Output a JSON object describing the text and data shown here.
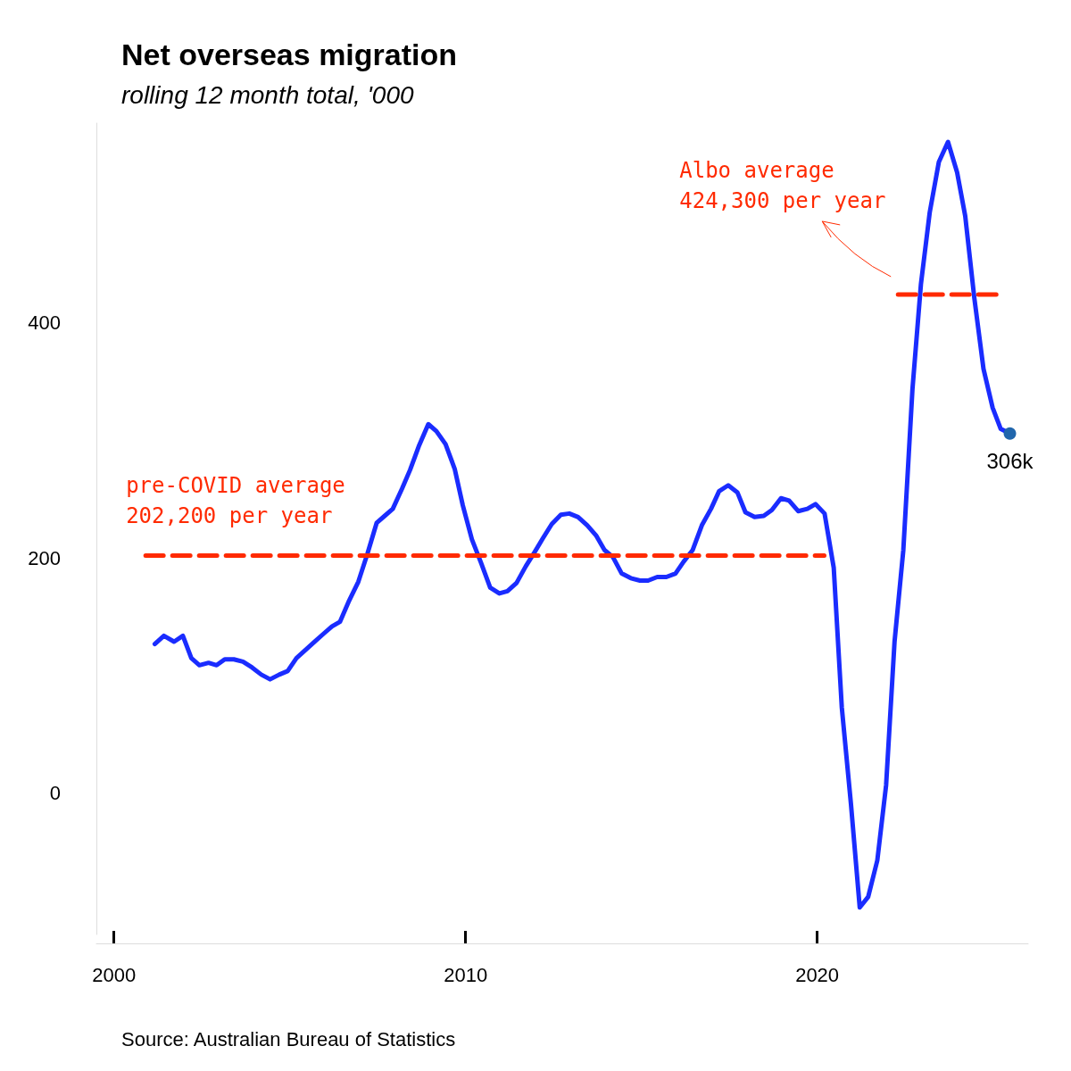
{
  "chart_data": {
    "type": "line",
    "title": "Net overseas migration",
    "subtitle": "rolling 12 month total, '000",
    "xlim": [
      1999.5,
      2026
    ],
    "xticks": [
      2000,
      2010,
      2020
    ],
    "ylim": [
      -120,
      570
    ],
    "yticks": [
      0,
      200,
      400
    ],
    "grid": false,
    "marker": "none",
    "line_style": "solid",
    "series": [
      {
        "color": "#1a2cff",
        "x": [
          2001.16,
          2001.42,
          2001.71,
          2001.96,
          2002.2,
          2002.43,
          2002.69,
          2002.92,
          2003.15,
          2003.41,
          2003.67,
          2003.93,
          2004.19,
          2004.44,
          2004.7,
          2004.94,
          2005.19,
          2005.45,
          2005.71,
          2005.97,
          2006.2,
          2006.43,
          2006.69,
          2006.95,
          2007.21,
          2007.47,
          2007.7,
          2007.93,
          2008.19,
          2008.42,
          2008.68,
          2008.94,
          2009.17,
          2009.43,
          2009.69,
          2009.92,
          2010.18,
          2010.44,
          2010.7,
          2010.96,
          2011.19,
          2011.45,
          2011.71,
          2011.96,
          2012.2,
          2012.45,
          2012.71,
          2012.95,
          2013.2,
          2013.46,
          2013.72,
          2013.95,
          2014.19,
          2014.44,
          2014.7,
          2014.96,
          2015.19,
          2015.45,
          2015.71,
          2015.97,
          2016.2,
          2016.46,
          2016.72,
          2016.98,
          2017.21,
          2017.47,
          2017.73,
          2017.96,
          2018.22,
          2018.48,
          2018.71,
          2018.97,
          2019.2,
          2019.46,
          2019.72,
          2019.95,
          2020.21,
          2020.47,
          2020.7,
          2020.96,
          2021.21,
          2021.45,
          2021.71,
          2021.96,
          2022.2,
          2022.45,
          2022.71,
          2022.95,
          2023.2,
          2023.46,
          2023.72,
          2023.98,
          2024.21,
          2024.47,
          2024.73,
          2024.99,
          2025.22,
          2025.48
        ],
        "values": [
          127,
          134,
          129,
          134,
          115,
          109,
          111,
          109,
          114,
          114,
          112,
          107,
          101,
          97,
          101,
          104,
          115,
          122,
          129,
          136,
          142,
          146,
          164,
          180,
          204,
          230,
          236,
          242,
          259,
          275,
          296,
          314,
          308,
          297,
          276,
          245,
          216,
          196,
          175,
          170,
          172,
          179,
          193,
          205,
          217,
          229,
          237,
          238,
          235,
          228,
          219,
          207,
          201,
          187,
          183,
          181,
          181,
          184,
          184,
          187,
          197,
          207,
          228,
          242,
          257,
          262,
          256,
          239,
          235,
          236,
          241,
          251,
          249,
          240,
          242,
          246,
          238,
          192,
          73,
          -9,
          -97,
          -88,
          -57,
          7,
          129,
          207,
          344,
          433,
          494,
          537,
          554,
          528,
          491,
          421,
          361,
          328,
          310,
          306
        ],
        "value_labels": [
          null,
          null,
          null,
          null,
          null,
          null,
          null,
          null,
          null,
          null,
          null,
          null,
          null,
          null,
          null,
          null,
          null,
          null,
          null,
          null,
          null,
          null,
          null,
          null,
          null,
          null,
          null,
          null,
          null,
          null,
          null,
          null,
          null,
          null,
          null,
          null,
          null,
          null,
          null,
          null,
          null,
          null,
          null,
          null,
          null,
          null,
          null,
          null,
          null,
          null,
          null,
          null,
          null,
          null,
          null,
          null,
          null,
          null,
          null,
          null,
          null,
          null,
          null,
          null,
          null,
          null,
          null,
          null,
          null,
          null,
          null,
          null,
          null,
          null,
          null,
          null,
          null,
          null,
          null,
          null,
          null,
          null,
          null,
          null,
          null,
          null,
          null,
          null,
          null,
          null,
          null,
          null,
          null,
          null,
          null,
          null,
          null,
          "306k"
        ]
      },
      {
        "color": "#ff2a00",
        "line_style": "dashed",
        "x": [
          2000.9,
          2020.2
        ],
        "values": [
          202.2,
          202.2
        ]
      },
      {
        "color": "#ff2a00",
        "line_style": "dashed",
        "x": [
          2022.3,
          2025.2
        ],
        "values": [
          424.3,
          424.3
        ]
      }
    ],
    "annotations": [
      "pre-COVID average\n202,200 per year",
      "Albo average\n424,300 per year",
      "Source: Australian Bureau of Statistics"
    ]
  }
}
